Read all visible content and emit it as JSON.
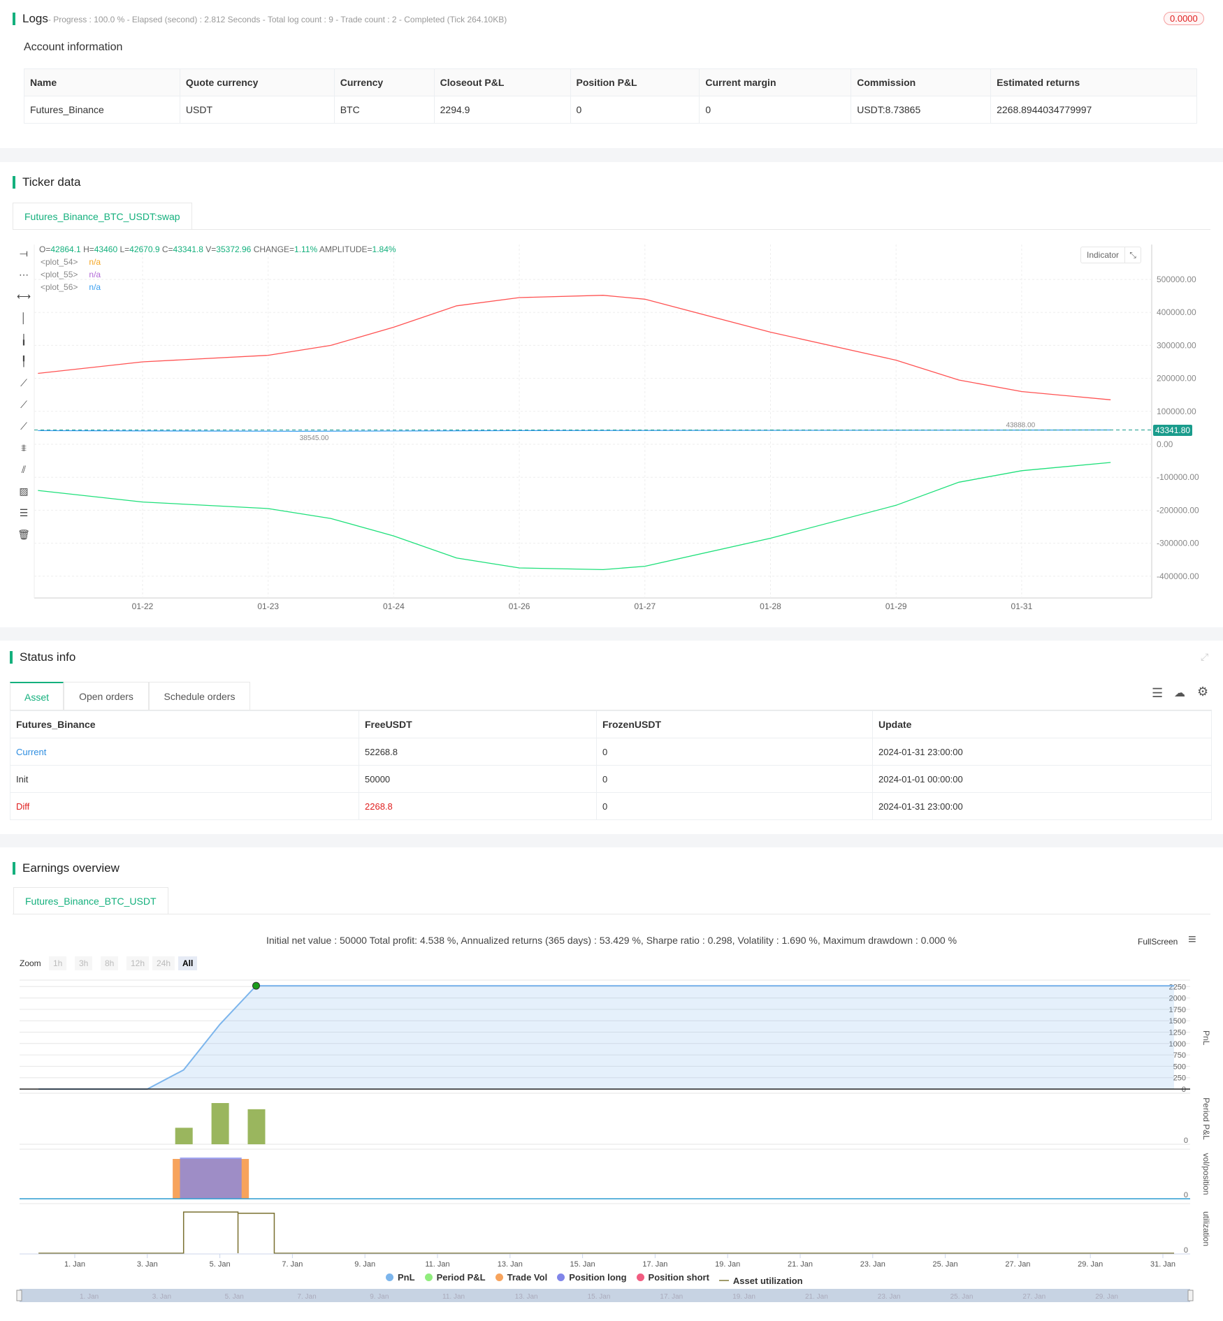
{
  "logs": {
    "title": "Logs",
    "summary": "- Progress : 100.0 % - Elapsed (second) : 2.812  Seconds - Total log count : 9 - Trade count : 2 - Completed (Tick 264.10KB)",
    "badge": "0.0000"
  },
  "account": {
    "title": "Account information",
    "headers": [
      "Name",
      "Quote currency",
      "Currency",
      "Closeout P&L",
      "Position P&L",
      "Current margin",
      "Commission",
      "Estimated returns"
    ],
    "row": [
      "Futures_Binance",
      "USDT",
      "BTC",
      "2294.9",
      "0",
      "0",
      "USDT:8.73865",
      "2268.8944034779997"
    ]
  },
  "ticker": {
    "title": "Ticker data",
    "tab": "Futures_Binance_BTC_USDT:swap",
    "ohlc": {
      "o_label": "O=",
      "o": "42864.1",
      "h_label": " H=",
      "h": "43460",
      "l_label": " L=",
      "l": "42670.9",
      "c_label": " C=",
      "c": "43341.8",
      "v_label": " V=",
      "v": "35372.96",
      "change_label": " CHANGE=",
      "change": "1.11%",
      "amp_label": " AMPLITUDE=",
      "amp": "1.84%"
    },
    "plots": [
      {
        "name": "<plot_54>",
        "value": "n/a",
        "color": "#f5a623"
      },
      {
        "name": "<plot_55>",
        "value": "n/a",
        "color": "#b36ad8"
      },
      {
        "name": "<plot_56>",
        "value": "n/a",
        "color": "#3a9ff0"
      }
    ],
    "indicator_label": "Indicator",
    "last_price": "43341.80",
    "last_price_value": 43341.8,
    "annotations": [
      {
        "text": "38545.00",
        "date": "01-23 06:00",
        "value": 38545
      },
      {
        "text": "43888.00",
        "date": "01-30 18:00",
        "value": 43888
      }
    ],
    "toolbar_icons": [
      "horizontal-line-icon",
      "horizontal-ray-icon",
      "horizontal-segment-icon",
      "vertical-line-icon",
      "vertical-ray-icon",
      "vertical-segment-icon",
      "trend-line-icon",
      "ray-line-icon",
      "segment-icon",
      "price-label-icon",
      "parallel-channel-icon",
      "fib-icon",
      "horizontal-lines-icon",
      "trash-icon"
    ]
  },
  "chart_data": [
    {
      "type": "line",
      "yticks": [
        "500000.00",
        "400000.00",
        "300000.00",
        "200000.00",
        "100000.00",
        "0.00",
        "-100000.00",
        "-200000.00",
        "-300000.00",
        "-400000.00"
      ],
      "ytick_values": [
        500000,
        400000,
        300000,
        200000,
        100000,
        0,
        -100000,
        -200000,
        -300000,
        -400000
      ],
      "xticks": [
        "01-22",
        "01-23",
        "01-24",
        "01-26",
        "01-27",
        "01-28",
        "01-29",
        "01-31"
      ],
      "series": [
        {
          "color": "#ff5252",
          "points": [
            [
              "01-21 04:00",
              215000
            ],
            [
              "01-22 00:00",
              250000
            ],
            [
              "01-23 00:00",
              270000
            ],
            [
              "01-23 12:00",
              300000
            ],
            [
              "01-24 00:00",
              355000
            ],
            [
              "01-25 00:00",
              420000
            ],
            [
              "01-26 00:00",
              445000
            ],
            [
              "01-26 16:00",
              452000
            ],
            [
              "01-27 00:00",
              440000
            ],
            [
              "01-28 00:00",
              340000
            ],
            [
              "01-29 00:00",
              255000
            ],
            [
              "01-30 00:00",
              195000
            ],
            [
              "01-31 00:00",
              160000
            ],
            [
              "01-31 17:00",
              135000
            ]
          ]
        },
        {
          "color": "#1ee07a",
          "points": [
            [
              "01-21 04:00",
              -140000
            ],
            [
              "01-22 00:00",
              -175000
            ],
            [
              "01-23 00:00",
              -195000
            ],
            [
              "01-23 12:00",
              -225000
            ],
            [
              "01-24 00:00",
              -278000
            ],
            [
              "01-25 00:00",
              -345000
            ],
            [
              "01-26 00:00",
              -375000
            ],
            [
              "01-26 16:00",
              -380000
            ],
            [
              "01-27 00:00",
              -370000
            ],
            [
              "01-28 00:00",
              -285000
            ],
            [
              "01-29 00:00",
              -185000
            ],
            [
              "01-30 00:00",
              -115000
            ],
            [
              "01-31 00:00",
              -80000
            ],
            [
              "01-31 17:00",
              -55000
            ]
          ]
        },
        {
          "color": "#3a9ff0",
          "points": [
            [
              "01-21 04:00",
              41500
            ],
            [
              "01-23 06:00",
              39500
            ],
            [
              "01-26 00:00",
              41500
            ],
            [
              "01-29 00:00",
              42500
            ],
            [
              "01-31 17:00",
              43341.8
            ]
          ]
        }
      ]
    },
    {
      "type": "area",
      "title": "Initial net value : 50000 Total profit: 4.538 %, Annualized returns (365 days) : 53.429 %, Sharpe ratio : 0.298, Volatility : 1.690 %, Maximum drawdown : 0.000 %",
      "pnl_label": "PnL",
      "period_label": "Period P&L",
      "vol_label": "vol/position",
      "util_label": "utilization",
      "pnl_yticks": [
        "2250",
        "2000",
        "1750",
        "1500",
        "1250",
        "1000",
        "750",
        "500",
        "250",
        "0"
      ],
      "pnl_ytick_values": [
        2250,
        2000,
        1750,
        1500,
        1250,
        1000,
        750,
        500,
        250,
        0
      ],
      "zero_label": "0",
      "xticks": [
        "1. Jan",
        "3. Jan",
        "5. Jan",
        "7. Jan",
        "9. Jan",
        "11. Jan",
        "13. Jan",
        "15. Jan",
        "17. Jan",
        "19. Jan",
        "21. Jan",
        "23. Jan",
        "25. Jan",
        "27. Jan",
        "29. Jan",
        "31. Jan"
      ],
      "pnl": [
        [
          -1,
          0
        ],
        [
          2,
          0
        ],
        [
          3,
          420
        ],
        [
          4,
          1420
        ],
        [
          5,
          2268.8
        ],
        [
          31,
          2268.8
        ]
      ],
      "period_pnl": [
        [
          3,
          400
        ],
        [
          4,
          1000
        ],
        [
          5,
          850
        ]
      ],
      "trade_vol": [
        [
          2.7,
          4.8
        ]
      ],
      "position_long": [
        [
          2.9,
          4.6
        ]
      ],
      "utilization": [
        [
          3,
          4.5,
          1
        ],
        [
          4.5,
          5.5,
          0.97
        ]
      ],
      "legend": [
        {
          "label": "PnL",
          "color": "#7cb5ec"
        },
        {
          "label": "Period P&L",
          "color": "#90ed7d"
        },
        {
          "label": "Trade Vol",
          "color": "#f7a35c"
        },
        {
          "label": "Position long",
          "color": "#8085e9"
        },
        {
          "label": "Position short",
          "color": "#f15c80"
        },
        {
          "label": "Asset utilization",
          "color": "#a09a6a"
        }
      ]
    }
  ],
  "status": {
    "title": "Status info",
    "tabs": [
      "Asset",
      "Open orders",
      "Schedule orders"
    ],
    "headers": [
      "Futures_Binance",
      "FreeUSDT",
      "FrozenUSDT",
      "Update"
    ],
    "rows": [
      [
        "Current",
        "52268.8",
        "0",
        "2024-01-31 23:00:00"
      ],
      [
        "Init",
        "50000",
        "0",
        "2024-01-01 00:00:00"
      ],
      [
        "Diff",
        "2268.8",
        "0",
        "2024-01-31 23:00:00"
      ]
    ]
  },
  "earnings": {
    "title": "Earnings overview",
    "tab": "Futures_Binance_BTC_USDT",
    "fullscreen": "FullScreen",
    "zoom_label": "Zoom",
    "zoom_buttons": [
      "1h",
      "3h",
      "8h",
      "12h",
      "24h",
      "All"
    ]
  },
  "colors": {
    "accent": "#14b07d",
    "red": "#e02020",
    "link": "#2f8ee0"
  }
}
